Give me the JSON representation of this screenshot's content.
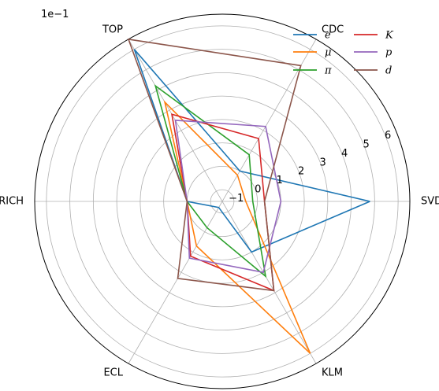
{
  "chart_data": {
    "type": "radar",
    "scale_label": "1e−1",
    "axes": [
      "SVD",
      "CDC",
      "TOP",
      "ARICH",
      "ECL",
      "KLM"
    ],
    "rlim": [
      -1.5,
      6.5
    ],
    "ring_values": [
      -1,
      0,
      1,
      2,
      3,
      4,
      5,
      6
    ],
    "ring_tick_labels": [
      "−1",
      "0",
      "1",
      "2",
      "3",
      "4",
      "5",
      "6"
    ],
    "grid": true,
    "legend_position": "top-right",
    "series": [
      {
        "name": "e",
        "color": "#1f77b4",
        "values": [
          4.8,
          0.0,
          6.0,
          0.0,
          -1.2,
          1.0
        ]
      },
      {
        "name": "μ",
        "color": "#ff7f0e",
        "values": [
          -0.5,
          -0.2,
          3.4,
          0.0,
          0.7,
          6.0
        ]
      },
      {
        "name": "π",
        "color": "#2ca02c",
        "values": [
          -0.2,
          0.8,
          4.2,
          0.0,
          -0.2,
          2.2
        ]
      },
      {
        "name": "K",
        "color": "#d62728",
        "values": [
          0.3,
          1.6,
          2.8,
          0.0,
          1.2,
          2.9
        ]
      },
      {
        "name": "p",
        "color": "#9467bd",
        "values": [
          1.0,
          2.2,
          2.5,
          0.0,
          1.3,
          2.0
        ]
      },
      {
        "name": "d",
        "color": "#8c564b",
        "values": [
          0.3,
          5.2,
          6.5,
          0.0,
          2.3,
          2.9
        ]
      }
    ]
  }
}
